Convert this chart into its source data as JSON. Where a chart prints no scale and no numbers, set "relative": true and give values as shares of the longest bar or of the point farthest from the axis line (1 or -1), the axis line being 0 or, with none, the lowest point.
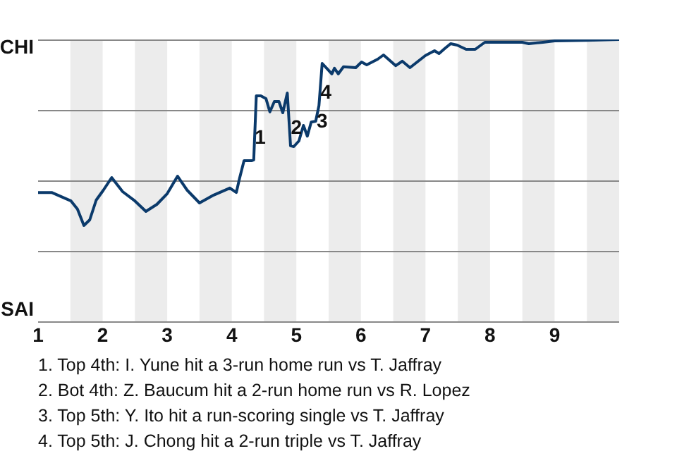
{
  "chart_data": {
    "type": "line",
    "relative": true,
    "x": [
      1.0,
      1.21,
      1.51,
      1.61,
      1.71,
      1.8,
      1.9,
      2.01,
      2.14,
      2.31,
      2.5,
      2.67,
      2.84,
      3.0,
      3.16,
      3.31,
      3.5,
      3.72,
      3.97,
      4.07,
      4.12,
      4.19,
      4.31,
      4.34,
      4.38,
      4.45,
      4.53,
      4.59,
      4.66,
      4.73,
      4.79,
      4.86,
      4.91,
      4.96,
      5.04,
      5.11,
      5.17,
      5.23,
      5.3,
      5.35,
      5.4,
      5.49,
      5.55,
      5.59,
      5.65,
      5.73,
      5.92,
      6.01,
      6.09,
      6.26,
      6.35,
      6.54,
      6.64,
      6.76,
      7.0,
      7.14,
      7.21,
      7.3,
      7.39,
      7.49,
      7.63,
      7.77,
      7.92,
      8.5,
      8.6,
      8.82,
      9.0,
      9.5,
      10.0
    ],
    "series": [
      {
        "color": "#0b3a6b",
        "values": [
          0.457,
          0.457,
          0.427,
          0.398,
          0.34,
          0.36,
          0.43,
          0.465,
          0.51,
          0.46,
          0.427,
          0.39,
          0.415,
          0.453,
          0.515,
          0.465,
          0.42,
          0.448,
          0.473,
          0.457,
          0.507,
          0.57,
          0.57,
          0.573,
          0.8,
          0.8,
          0.79,
          0.743,
          0.78,
          0.78,
          0.74,
          0.81,
          0.623,
          0.62,
          0.64,
          0.695,
          0.657,
          0.707,
          0.71,
          0.765,
          0.915,
          0.893,
          0.878,
          0.898,
          0.878,
          0.903,
          0.9,
          0.92,
          0.91,
          0.93,
          0.945,
          0.907,
          0.923,
          0.9,
          0.943,
          0.96,
          0.95,
          0.968,
          0.985,
          0.98,
          0.965,
          0.965,
          0.99,
          0.99,
          0.985,
          0.99,
          0.995,
          0.997,
          1.0
        ],
        "line_style": "solid"
      }
    ],
    "xlim": [
      1,
      10
    ],
    "xticks": [
      1,
      2,
      3,
      4,
      5,
      6,
      7,
      8,
      9
    ],
    "grid": "y",
    "marker": "none",
    "legend": false,
    "bands": [
      {
        "axis": "x",
        "from": 1.5,
        "to": 2,
        "color": "#ececec"
      },
      {
        "axis": "x",
        "from": 2.5,
        "to": 3,
        "color": "#ececec"
      },
      {
        "axis": "x",
        "from": 3.5,
        "to": 4,
        "color": "#ececec"
      },
      {
        "axis": "x",
        "from": 4.5,
        "to": 5,
        "color": "#ececec"
      },
      {
        "axis": "x",
        "from": 5.5,
        "to": 6,
        "color": "#ececec"
      },
      {
        "axis": "x",
        "from": 6.5,
        "to": 7,
        "color": "#ececec"
      },
      {
        "axis": "x",
        "from": 7.5,
        "to": 8,
        "color": "#ececec"
      },
      {
        "axis": "x",
        "from": 8.5,
        "to": 9,
        "color": "#ececec"
      },
      {
        "axis": "x",
        "from": 9.5,
        "to": 10,
        "color": "#ececec"
      }
    ],
    "annotations": [
      "CHI",
      "SAI",
      {
        "text": "1",
        "x": 4.44,
        "y": 0.65
      },
      {
        "text": "2",
        "x": 5.0,
        "y": 0.685
      },
      {
        "text": "3",
        "x": 5.4,
        "y": 0.707
      },
      {
        "text": "4",
        "x": 5.46,
        "y": 0.81
      },
      "1. Top 4th: I. Yune hit a 3-run home run vs T. Jaffray",
      "2. Bot 4th: Z. Baucum hit a 2-run home run vs R. Lopez",
      "3. Top 5th: Y. Ito hit a run-scoring single vs T. Jaffray",
      "4. Top 5th: J. Chong hit a 2-run triple vs T. Jaffray"
    ]
  }
}
